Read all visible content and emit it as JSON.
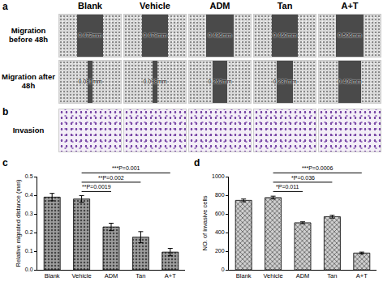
{
  "figure": {
    "columns": [
      "Blank",
      "Vehicle",
      "ADM",
      "Tan",
      "A+T"
    ],
    "panel_a": {
      "label": "a",
      "rows": [
        {
          "label": "Migration before 48h",
          "widths": [
            {
              "value": 0.472,
              "label": "0.472mm"
            },
            {
              "value": 0.479,
              "label": "0.479mm"
            },
            {
              "value": 0.496,
              "label": "0.496mm"
            },
            {
              "value": 0.46,
              "label": "0.460mm"
            },
            {
              "value": 0.506,
              "label": "0.506mm"
            }
          ]
        },
        {
          "label": "Migration after 48h",
          "widths": [
            {
              "value": 0.081,
              "label": "0.081mm"
            },
            {
              "value": 0.098,
              "label": "0.098mm"
            },
            {
              "value": 0.262,
              "label": "0.262mm"
            },
            {
              "value": 0.287,
              "label": "0.287mm"
            },
            {
              "value": 0.409,
              "label": "0.409mm"
            }
          ]
        }
      ]
    },
    "panel_b": {
      "label": "b",
      "row_label": "Invasion"
    }
  },
  "chart_data": [
    {
      "type": "bar",
      "label": "c",
      "categories": [
        "Blank",
        "Vehicle",
        "ADM",
        "Tan",
        "A+T"
      ],
      "values": [
        0.39,
        0.38,
        0.23,
        0.175,
        0.095
      ],
      "errors": [
        0.02,
        0.018,
        0.02,
        0.03,
        0.02
      ],
      "ylabel": "Relative migrated distance (mm)",
      "ylim": [
        0,
        0.5
      ],
      "yticks": [
        {
          "value": 0,
          "label": "0.0"
        },
        0.1,
        0.2,
        0.3,
        0.4,
        0.5
      ],
      "color": "#9e9e9e",
      "marker": "dots",
      "comparisons": [
        {
          "from": "Vehicle",
          "to": "A+T",
          "label": "***P=0.001"
        },
        {
          "from": "Vehicle",
          "to": "Tan",
          "label": "**P=0.002"
        },
        {
          "from": "Vehicle",
          "to": "ADM",
          "label": "**P=0.0019"
        }
      ]
    },
    {
      "type": "bar",
      "label": "d",
      "categories": [
        "Blank",
        "Vehicle",
        "ADM",
        "Tan",
        "A+T"
      ],
      "values": [
        745,
        775,
        505,
        570,
        180
      ],
      "errors": [
        15,
        15,
        10,
        15,
        10
      ],
      "ylabel": "NO. of invasive cells",
      "ylim": [
        0,
        1000
      ],
      "yticks": [
        0,
        200,
        400,
        600,
        800,
        1000
      ],
      "color": "#d0d0d0",
      "marker": "crosshatch",
      "comparisons": [
        {
          "from": "Vehicle",
          "to": "A+T",
          "label": "***P=0.0006"
        },
        {
          "from": "Vehicle",
          "to": "Tan",
          "label": "*P=0.036"
        },
        {
          "from": "Vehicle",
          "to": "ADM",
          "label": "*P=0.011"
        }
      ]
    }
  ]
}
